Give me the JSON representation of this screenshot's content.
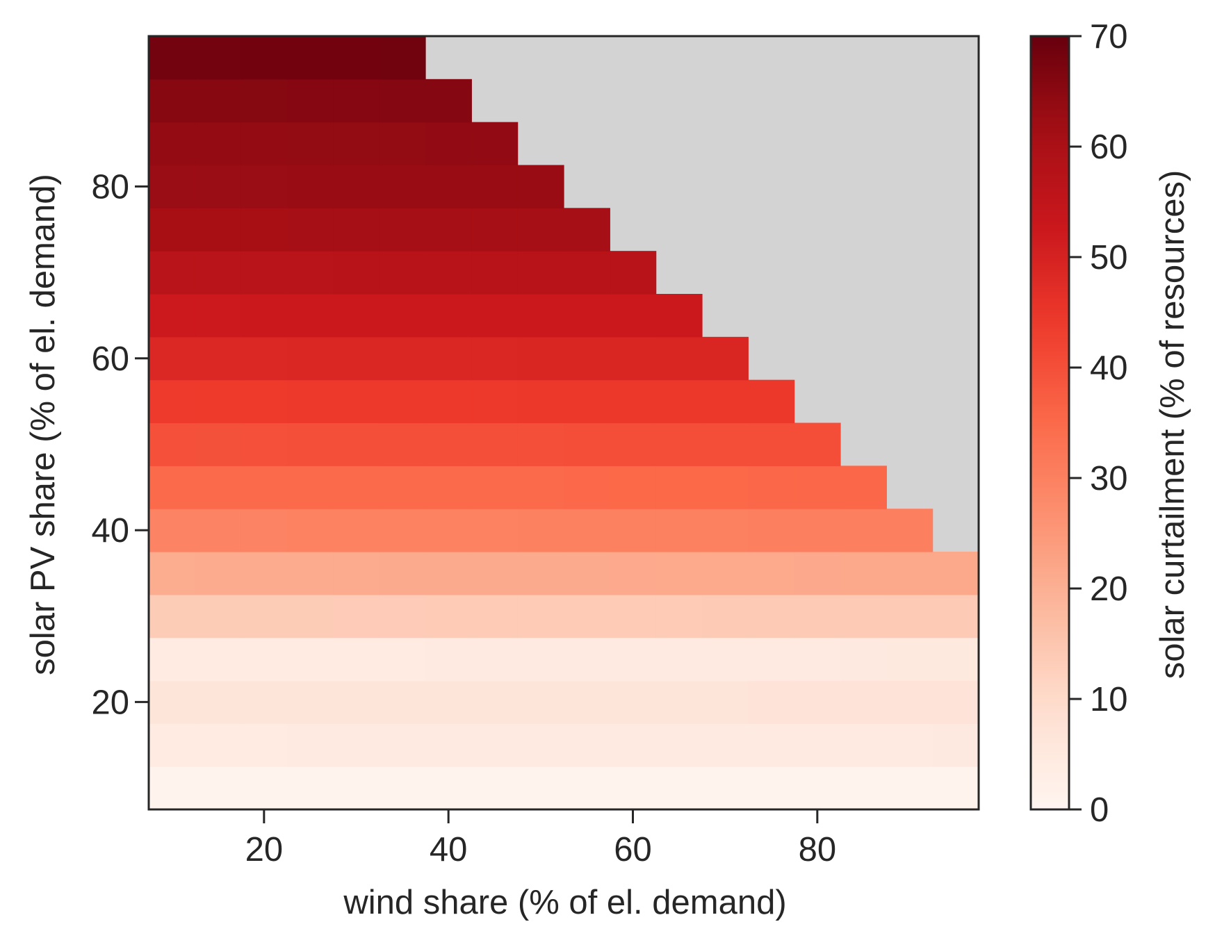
{
  "chart_data": {
    "type": "heatmap",
    "title": "",
    "xlabel": "wind share (% of el. demand)",
    "ylabel": "solar PV share (% of el. demand)",
    "x": [
      10,
      15,
      20,
      25,
      30,
      35,
      40,
      45,
      50,
      55,
      60,
      65,
      70,
      75,
      80,
      85,
      90,
      95
    ],
    "y": [
      10,
      15,
      20,
      25,
      30,
      35,
      40,
      45,
      50,
      55,
      60,
      65,
      70,
      75,
      80,
      85,
      90,
      95
    ],
    "xlim": [
      7.5,
      97.5
    ],
    "ylim": [
      7.5,
      97.5
    ],
    "xticks": [
      20,
      40,
      60,
      80
    ],
    "yticks": [
      20,
      40,
      60,
      80
    ],
    "feasibility_rule": "wind + solar <= 130",
    "row_values": [
      0.8,
      4.3,
      6.5,
      4.1,
      13.5,
      20.8,
      29.5,
      34.7,
      39.7,
      44.0,
      48.5,
      52.3,
      56.7,
      60.8,
      62.6,
      63.6,
      65.5,
      68.3
    ],
    "row_trend": [
      0.0,
      0.5,
      0.5,
      0.8,
      0.5,
      0.8,
      0.8,
      0.8,
      0.8,
      0.8,
      0.8,
      0.8,
      0.8,
      0.8,
      0.8,
      0.8,
      0.8,
      0.8
    ],
    "z_unit": "% of resources",
    "colorbar": {
      "label": "solar curtailment (% of resources)",
      "min": 0,
      "max": 70,
      "ticks": [
        0,
        10,
        20,
        30,
        40,
        50,
        60,
        70
      ],
      "colormap": "Reds"
    },
    "missing_color": "#d3d3d3",
    "grid": false,
    "legend": "none"
  }
}
